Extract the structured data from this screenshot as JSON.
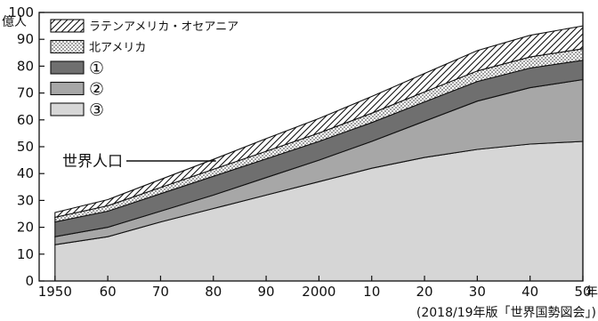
{
  "chart_data": {
    "type": "area",
    "stacked": true,
    "y_unit": "億人",
    "x_unit": "年",
    "x": [
      1950,
      1960,
      1970,
      1980,
      1990,
      2000,
      2010,
      2020,
      2030,
      2040,
      2050
    ],
    "x_tick_labels": [
      "1950",
      "60",
      "70",
      "80",
      "90",
      "2000",
      "10",
      "20",
      "30",
      "40",
      "50"
    ],
    "y_ticks": [
      0,
      10,
      20,
      30,
      40,
      50,
      60,
      70,
      80,
      90,
      100
    ],
    "xlim": [
      1947,
      2050
    ],
    "ylim": [
      0,
      100
    ],
    "series": [
      {
        "name": "③",
        "pattern": "solid-light",
        "values": [
          13.5,
          16.5,
          22,
          27,
          32,
          37,
          42,
          46,
          49,
          51,
          52
        ]
      },
      {
        "name": "②",
        "pattern": "solid-medium",
        "values": [
          3,
          3.5,
          4,
          5,
          6.5,
          8,
          10,
          13.5,
          18,
          21,
          23
        ]
      },
      {
        "name": "①",
        "pattern": "solid-dark",
        "values": [
          5.5,
          6,
          6.5,
          7,
          7,
          7,
          7,
          7.2,
          7.3,
          7.3,
          7.2
        ]
      },
      {
        "name": "北アメリカ",
        "pattern": "dots",
        "values": [
          1.7,
          2,
          2.3,
          2.6,
          2.8,
          3.1,
          3.5,
          3.7,
          3.9,
          4.1,
          4.3
        ]
      },
      {
        "name": "ラテンアメリカ・オセアニア",
        "pattern": "hatch",
        "values": [
          1.8,
          2.3,
          3,
          3.7,
          4.7,
          5.4,
          6.2,
          6.9,
          7.6,
          8.1,
          8.5
        ]
      }
    ],
    "legend_order": [
      "ラテンアメリカ・オセアニア",
      "北アメリカ",
      "①",
      "②",
      "③"
    ],
    "legend_position": "top-left",
    "annotation": {
      "text": "世界人口",
      "points_to_x": 1980
    },
    "source": "(2018/19年版「世界国勢図会」)",
    "grid": false
  }
}
